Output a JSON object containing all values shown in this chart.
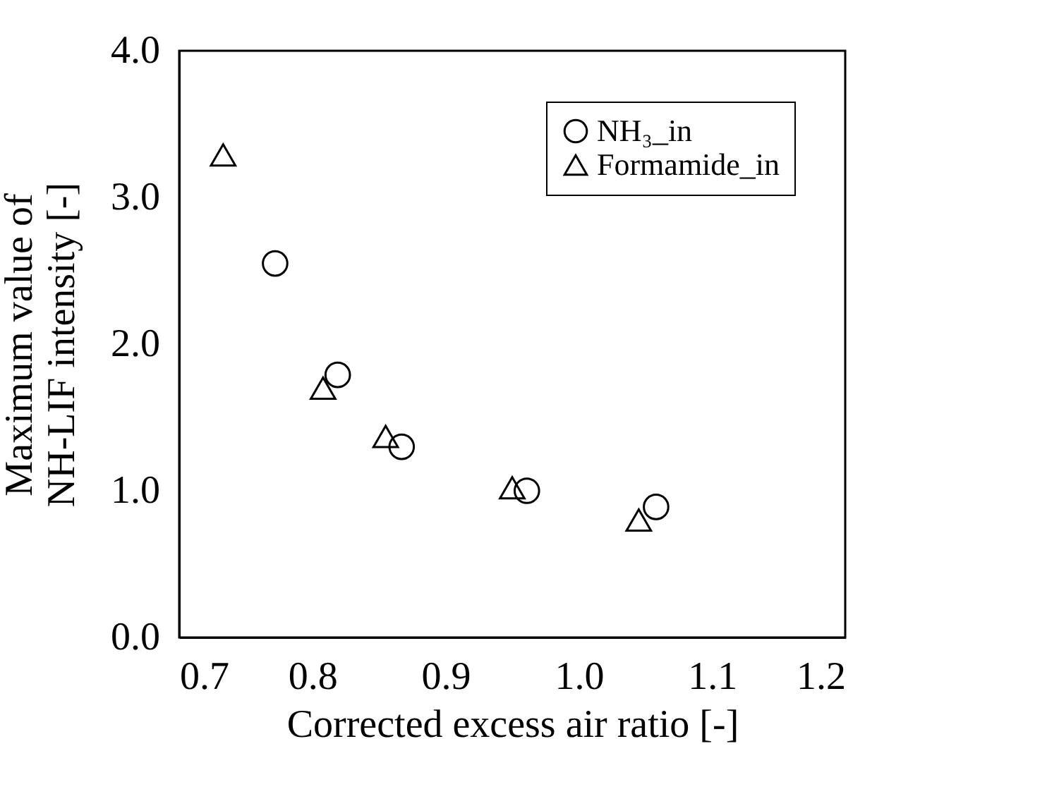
{
  "chart_data": {
    "type": "scatter",
    "xlabel": "Corrected excess air ratio [-]",
    "ylabel": "Maximum value of\nNH-LIF intensity [-]",
    "xlim": [
      0.7,
      1.2
    ],
    "ylim": [
      0,
      4
    ],
    "xticks": [
      0.7,
      0.8,
      0.9,
      {
        "value": 1,
        "label": "1.0"
      },
      1.1,
      1.2
    ],
    "yticks": [
      {
        "value": 0,
        "label": "0.0"
      },
      {
        "value": 1,
        "label": "1.0"
      },
      {
        "value": 2,
        "label": "2.0"
      },
      {
        "value": 3,
        "label": "3.0"
      },
      {
        "value": 4,
        "label": "4.0"
      }
    ],
    "legend": "top right",
    "grid": false,
    "series": [
      {
        "name": "NH₃_in",
        "color": "#000000",
        "marker": "circle",
        "x": [
          0.772,
          0.819,
          0.867,
          0.961,
          1.058
        ],
        "values": [
          2.55,
          1.79,
          1.3,
          1.0,
          0.89
        ]
      },
      {
        "name": "Formamide_in",
        "color": "#000000",
        "marker": "triangle",
        "x": [
          0.733,
          0.808,
          0.855,
          0.95,
          1.045
        ],
        "values": [
          3.29,
          1.7,
          1.37,
          1.02,
          0.8
        ]
      }
    ]
  }
}
